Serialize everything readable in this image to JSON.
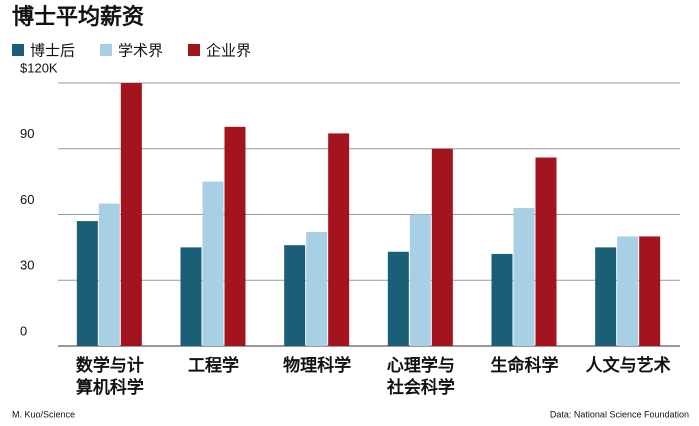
{
  "chart_data": {
    "type": "bar",
    "title": "博士平均薪资",
    "categories": [
      "数学与计\n算机科学",
      "工程学",
      "物理科学",
      "心理学与\n社会科学",
      "生命科学",
      "人文与艺术"
    ],
    "series": [
      {
        "name": "博士后",
        "color": "#1b5e78",
        "values": [
          57,
          45,
          46,
          43,
          42,
          45
        ]
      },
      {
        "name": "学术界",
        "color": "#a7d0e4",
        "values": [
          65,
          75,
          52,
          60,
          63,
          50
        ]
      },
      {
        "name": "企业界",
        "color": "#a3141f",
        "values": [
          120,
          100,
          97,
          90,
          86,
          50
        ]
      }
    ],
    "ylim": [
      0,
      120
    ],
    "yticks": [
      0,
      30,
      60,
      90,
      {
        "value": 120,
        "label": "$120K"
      }
    ],
    "grid": true,
    "credit": "M. Kuo/Science",
    "source": "Data: National Science Foundation"
  }
}
